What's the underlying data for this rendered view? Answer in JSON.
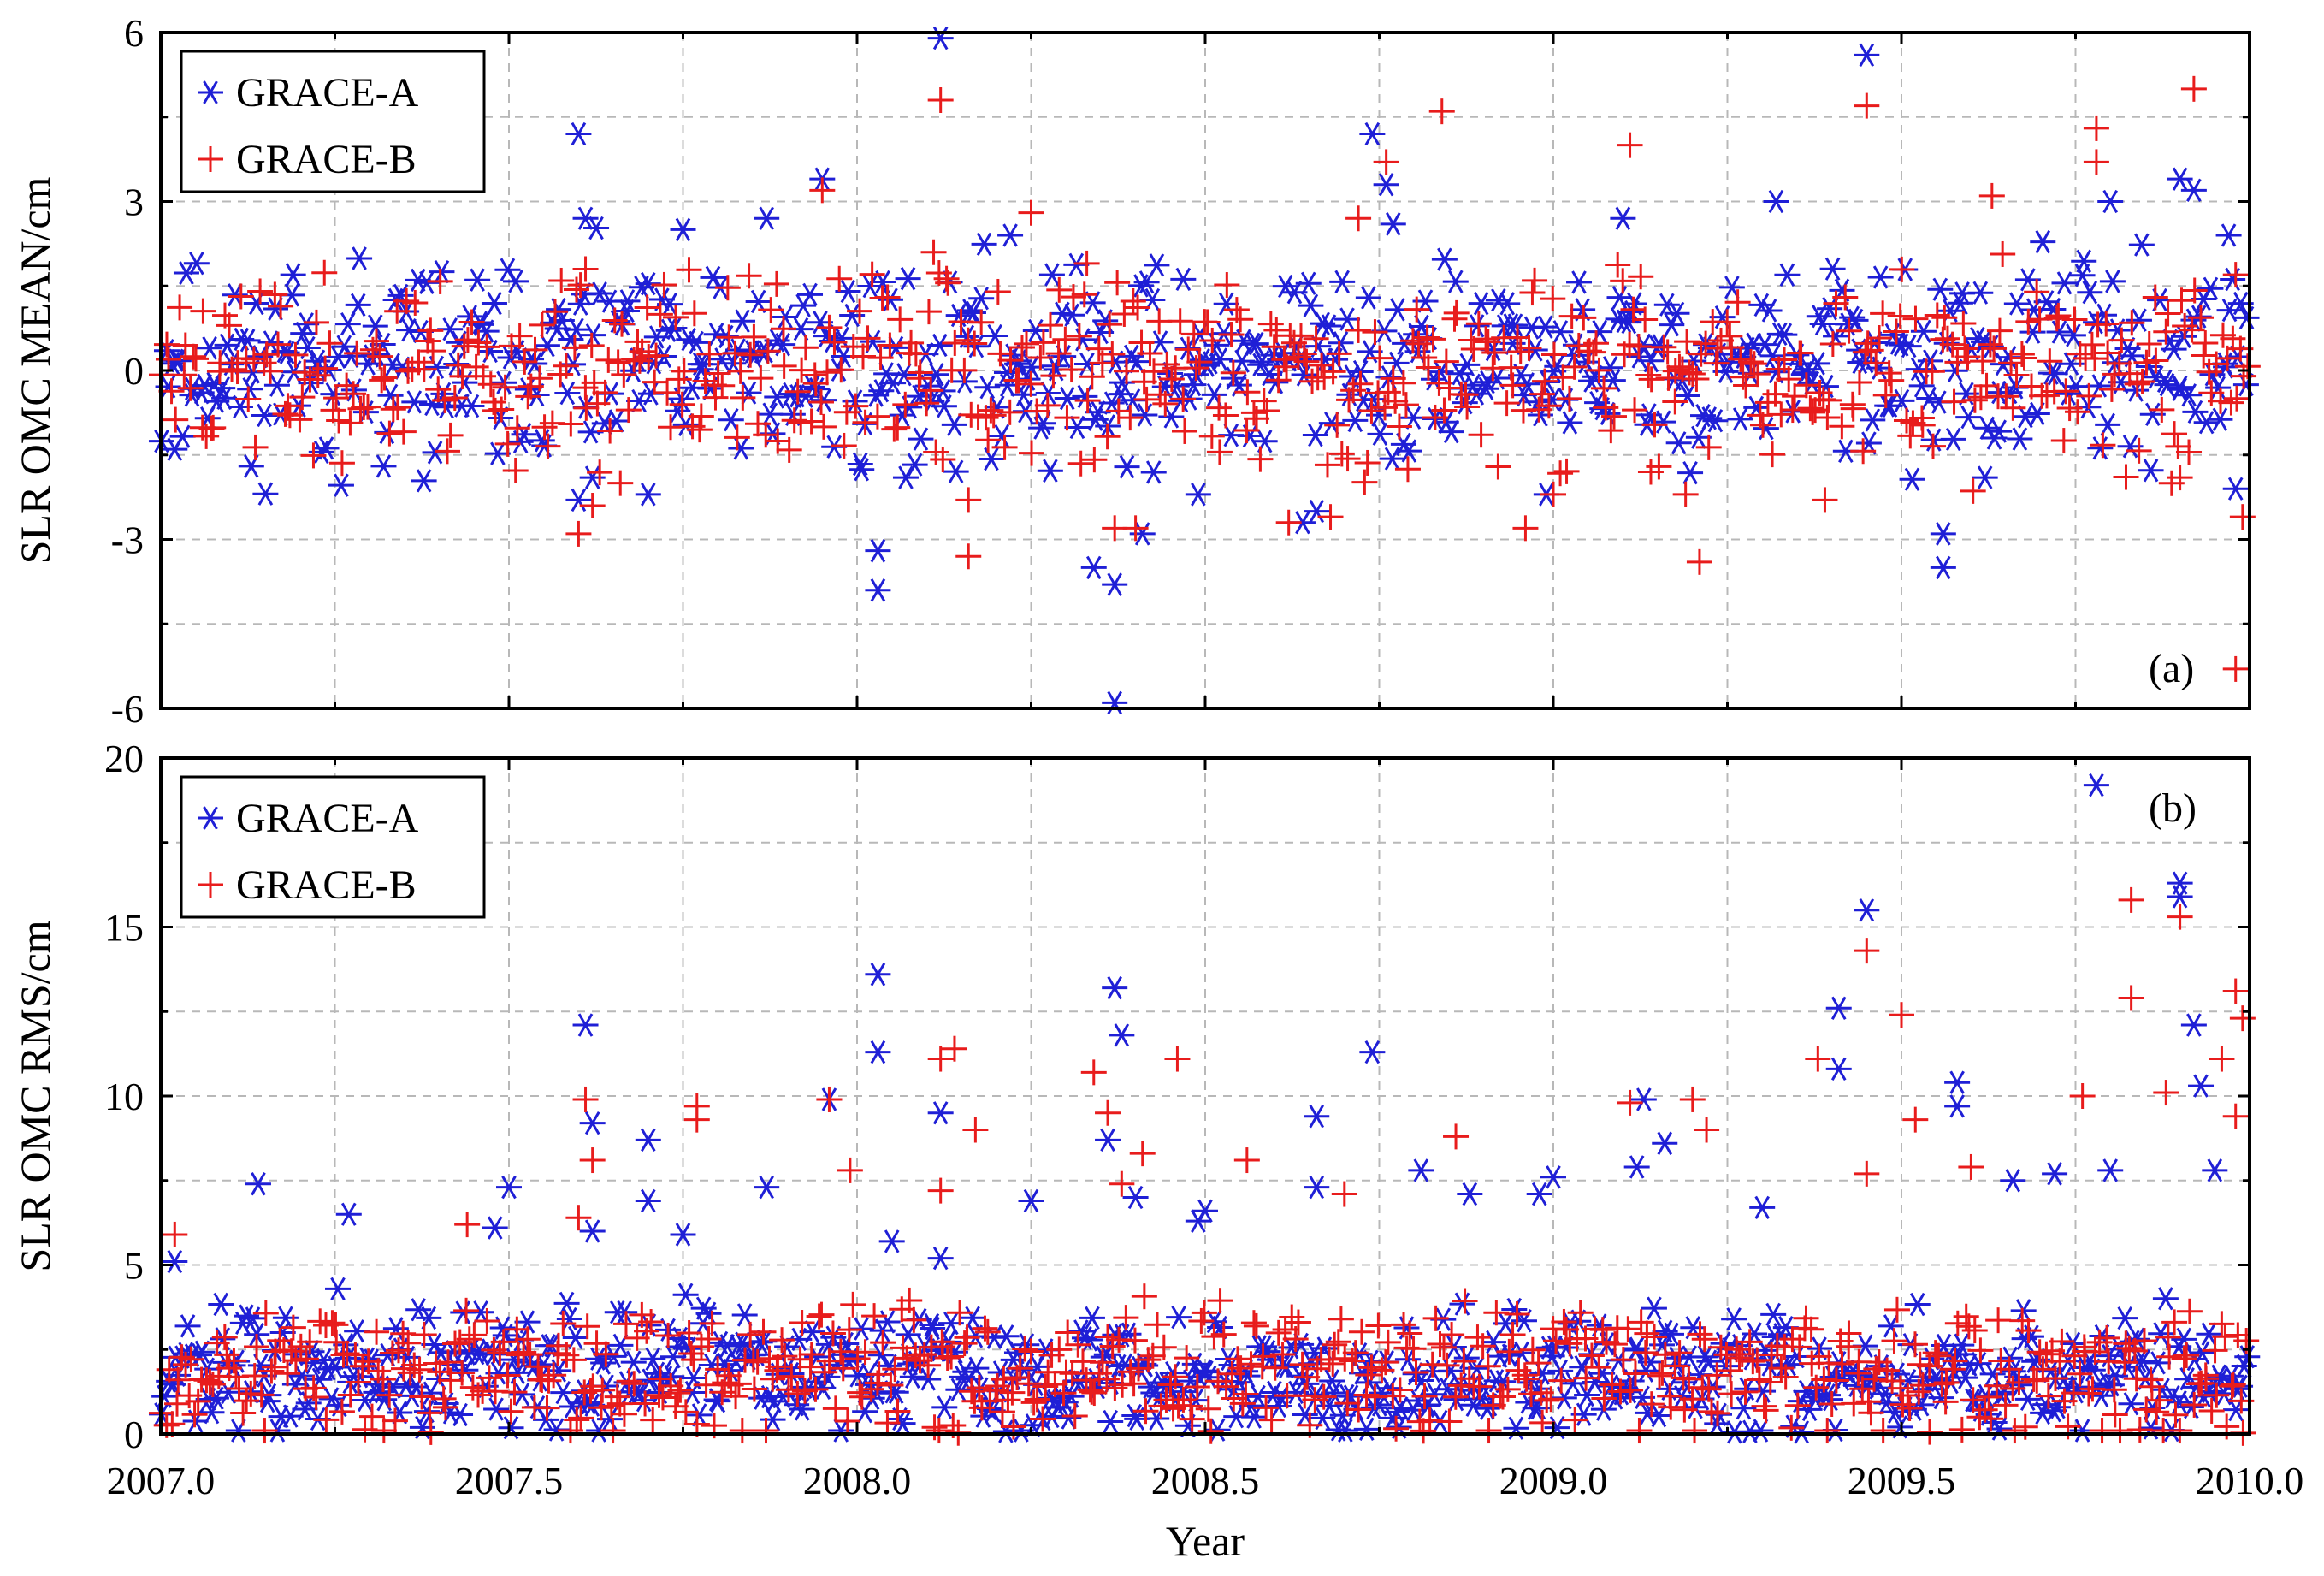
{
  "chart_data": [
    {
      "type": "scatter",
      "panel": "(a)",
      "ylabel": "SLR OMC MEAN/cm",
      "xlabel": "",
      "xlim": [
        2007.0,
        2010.0
      ],
      "ylim": [
        -6,
        6
      ],
      "xticks": [
        2007.0,
        2007.5,
        2008.0,
        2008.5,
        2009.0,
        2009.5,
        2010.0
      ],
      "yticks": [
        -6,
        -3,
        0,
        3,
        6
      ],
      "ytick_labels": [
        "-6",
        "-3",
        "0",
        "3",
        "6"
      ],
      "legend": {
        "position": "top-left",
        "entries": [
          "GRACE-A",
          "GRACE-B"
        ]
      },
      "series": [
        {
          "name": "GRACE-A",
          "marker": "asterisk",
          "color": "#1f1fd6",
          "outliers": [
            [
              2007.19,
              1.7
            ],
            [
              2007.6,
              4.2
            ],
            [
              2007.61,
              2.7
            ],
            [
              2007.62,
              -1.9
            ],
            [
              2007.7,
              -2.2
            ],
            [
              2007.75,
              2.5
            ],
            [
              2007.87,
              2.7
            ],
            [
              2007.95,
              3.4
            ],
            [
              2008.03,
              -3.2
            ],
            [
              2008.03,
              -3.9
            ],
            [
              2008.07,
              -1.9
            ],
            [
              2008.12,
              5.9
            ],
            [
              2008.22,
              2.4
            ],
            [
              2008.28,
              1.7
            ],
            [
              2008.34,
              -3.5
            ],
            [
              2008.37,
              -5.9
            ],
            [
              2008.37,
              -3.8
            ],
            [
              2008.41,
              -2.9
            ],
            [
              2008.49,
              -2.2
            ],
            [
              2008.64,
              -2.7
            ],
            [
              2008.66,
              -2.5
            ],
            [
              2008.74,
              4.2
            ],
            [
              2008.76,
              3.3
            ],
            [
              2008.77,
              2.6
            ],
            [
              2008.99,
              -2.2
            ],
            [
              2009.1,
              2.7
            ],
            [
              2009.32,
              3.0
            ],
            [
              2009.45,
              5.6
            ],
            [
              2009.56,
              -2.9
            ],
            [
              2009.56,
              -3.5
            ],
            [
              2009.62,
              -1.9
            ],
            [
              2009.8,
              3.0
            ],
            [
              2009.9,
              3.4
            ],
            [
              2009.92,
              3.2
            ],
            [
              2009.98,
              -2.1
            ],
            [
              2009.97,
              2.4
            ],
            [
              2007.02,
              -1.4
            ],
            [
              2007.13,
              -1.7
            ],
            [
              2007.32,
              -1.7
            ],
            [
              2007.6,
              -2.3
            ]
          ],
          "baseline": {
            "center": 0.1,
            "spread": 0.85,
            "count": 600,
            "seed": 11
          }
        },
        {
          "name": "GRACE-B",
          "marker": "plus",
          "color": "#e81c1c",
          "outliers": [
            [
              2007.6,
              -2.9
            ],
            [
              2007.61,
              1.8
            ],
            [
              2007.62,
              -2.4
            ],
            [
              2007.66,
              -2.0
            ],
            [
              2007.95,
              3.2
            ],
            [
              2008.12,
              4.8
            ],
            [
              2008.11,
              2.1
            ],
            [
              2008.16,
              -2.3
            ],
            [
              2008.16,
              -3.3
            ],
            [
              2008.25,
              2.8
            ],
            [
              2008.33,
              1.9
            ],
            [
              2008.37,
              -2.8
            ],
            [
              2008.4,
              -2.8
            ],
            [
              2008.62,
              -2.7
            ],
            [
              2008.68,
              -2.6
            ],
            [
              2008.72,
              2.7
            ],
            [
              2008.76,
              3.7
            ],
            [
              2008.84,
              4.6
            ],
            [
              2008.96,
              -2.8
            ],
            [
              2009.0,
              -2.2
            ],
            [
              2009.11,
              4.0
            ],
            [
              2009.14,
              -1.8
            ],
            [
              2009.19,
              -2.2
            ],
            [
              2009.21,
              -3.4
            ],
            [
              2009.39,
              -2.3
            ],
            [
              2009.45,
              4.7
            ],
            [
              2009.63,
              3.1
            ],
            [
              2009.78,
              4.3
            ],
            [
              2009.78,
              3.7
            ],
            [
              2009.92,
              5.0
            ],
            [
              2009.9,
              -1.9
            ],
            [
              2009.99,
              -2.6
            ],
            [
              2009.98,
              -5.3
            ],
            [
              2009.98,
              1.7
            ]
          ],
          "baseline": {
            "center": 0.0,
            "spread": 0.8,
            "count": 600,
            "seed": 23
          }
        }
      ]
    },
    {
      "type": "scatter",
      "panel": "(b)",
      "ylabel": "SLR OMC RMS/cm",
      "xlabel": "Year",
      "xlim": [
        2007.0,
        2010.0
      ],
      "ylim": [
        0,
        20
      ],
      "xticks": [
        2007.0,
        2007.5,
        2008.0,
        2008.5,
        2009.0,
        2009.5,
        2010.0
      ],
      "xtick_labels": [
        "2007.0",
        "2007.5",
        "2008.0",
        "2008.5",
        "2009.0",
        "2009.5",
        "2010.0"
      ],
      "yticks": [
        0,
        5,
        10,
        15,
        20
      ],
      "ytick_labels": [
        "0",
        "5",
        "10",
        "15",
        "20"
      ],
      "legend": {
        "position": "top-left",
        "entries": [
          "GRACE-A",
          "GRACE-B"
        ]
      },
      "series": [
        {
          "name": "GRACE-A",
          "marker": "asterisk",
          "color": "#1f1fd6",
          "outliers": [
            [
              2007.02,
              5.1
            ],
            [
              2007.14,
              7.4
            ],
            [
              2007.27,
              6.5
            ],
            [
              2007.5,
              7.3
            ],
            [
              2007.48,
              6.1
            ],
            [
              2007.61,
              12.1
            ],
            [
              2007.62,
              9.2
            ],
            [
              2007.62,
              6.0
            ],
            [
              2007.7,
              8.7
            ],
            [
              2007.7,
              6.9
            ],
            [
              2007.75,
              5.9
            ],
            [
              2007.87,
              7.3
            ],
            [
              2007.96,
              9.9
            ],
            [
              2008.03,
              11.3
            ],
            [
              2008.03,
              13.6
            ],
            [
              2008.05,
              5.7
            ],
            [
              2008.12,
              9.5
            ],
            [
              2008.12,
              5.2
            ],
            [
              2008.25,
              6.9
            ],
            [
              2008.36,
              8.7
            ],
            [
              2008.37,
              13.2
            ],
            [
              2008.38,
              11.8
            ],
            [
              2008.4,
              7.0
            ],
            [
              2008.49,
              6.3
            ],
            [
              2008.5,
              6.6
            ],
            [
              2008.66,
              9.4
            ],
            [
              2008.66,
              7.3
            ],
            [
              2008.74,
              11.3
            ],
            [
              2008.81,
              7.8
            ],
            [
              2008.88,
              7.1
            ],
            [
              2008.98,
              7.1
            ],
            [
              2009.0,
              7.6
            ],
            [
              2009.13,
              9.9
            ],
            [
              2009.16,
              8.6
            ],
            [
              2009.12,
              7.9
            ],
            [
              2009.3,
              6.7
            ],
            [
              2009.41,
              12.6
            ],
            [
              2009.41,
              10.8
            ],
            [
              2009.45,
              15.5
            ],
            [
              2009.58,
              10.4
            ],
            [
              2009.58,
              9.7
            ],
            [
              2009.66,
              7.5
            ],
            [
              2009.72,
              7.7
            ],
            [
              2009.78,
              19.2
            ],
            [
              2009.8,
              7.8
            ],
            [
              2009.9,
              16.3
            ],
            [
              2009.9,
              15.9
            ],
            [
              2009.92,
              12.1
            ],
            [
              2009.93,
              10.3
            ],
            [
              2009.95,
              7.8
            ]
          ],
          "baseline": {
            "center": 1.8,
            "spread": 0.9,
            "count": 620,
            "seed": 37
          }
        },
        {
          "name": "GRACE-B",
          "marker": "plus",
          "color": "#e81c1c",
          "outliers": [
            [
              2007.02,
              5.9
            ],
            [
              2007.44,
              6.2
            ],
            [
              2007.6,
              6.4
            ],
            [
              2007.61,
              9.9
            ],
            [
              2007.62,
              8.1
            ],
            [
              2007.77,
              9.3
            ],
            [
              2007.77,
              9.7
            ],
            [
              2007.96,
              9.9
            ],
            [
              2007.99,
              7.8
            ],
            [
              2008.12,
              11.1
            ],
            [
              2008.14,
              11.4
            ],
            [
              2008.17,
              9.0
            ],
            [
              2008.12,
              7.2
            ],
            [
              2008.34,
              10.7
            ],
            [
              2008.36,
              9.5
            ],
            [
              2008.38,
              7.4
            ],
            [
              2008.41,
              8.3
            ],
            [
              2008.46,
              11.1
            ],
            [
              2008.56,
              8.1
            ],
            [
              2008.7,
              7.1
            ],
            [
              2008.86,
              8.8
            ],
            [
              2009.11,
              9.8
            ],
            [
              2009.2,
              9.9
            ],
            [
              2009.22,
              9.0
            ],
            [
              2009.38,
              11.1
            ],
            [
              2009.45,
              14.3
            ],
            [
              2009.45,
              7.7
            ],
            [
              2009.5,
              12.4
            ],
            [
              2009.52,
              9.3
            ],
            [
              2009.6,
              7.9
            ],
            [
              2009.76,
              10.0
            ],
            [
              2009.83,
              12.9
            ],
            [
              2009.83,
              15.8
            ],
            [
              2009.88,
              10.1
            ],
            [
              2009.9,
              15.3
            ],
            [
              2009.96,
              11.1
            ],
            [
              2009.98,
              13.1
            ],
            [
              2009.99,
              12.3
            ],
            [
              2009.98,
              9.4
            ]
          ],
          "baseline": {
            "center": 1.9,
            "spread": 0.95,
            "count": 620,
            "seed": 53
          }
        }
      ]
    }
  ]
}
